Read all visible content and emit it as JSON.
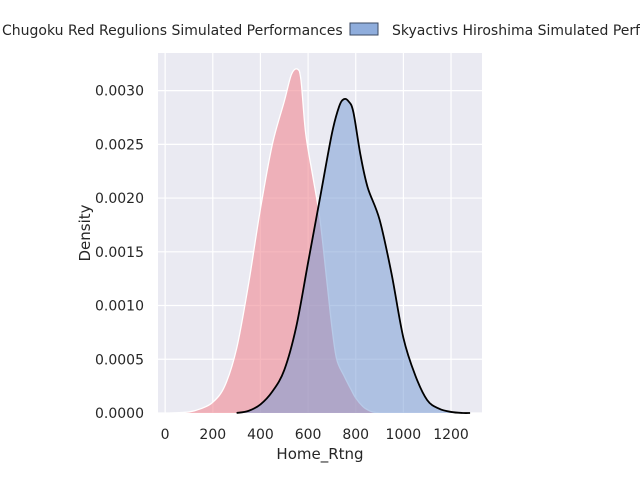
{
  "chart_data": {
    "type": "area",
    "xlabel": "Home_Rtng",
    "ylabel": "Density",
    "xlim": [
      -30,
      1330
    ],
    "ylim": [
      0,
      0.00335
    ],
    "x_ticks": [
      0,
      200,
      400,
      600,
      800,
      1000,
      1200
    ],
    "y_ticks": [
      0.0,
      0.0005,
      0.001,
      0.0015,
      0.002,
      0.0025,
      0.003
    ],
    "x_tick_labels": [
      "0",
      "200",
      "400",
      "600",
      "800",
      "1000",
      "1200"
    ],
    "y_tick_labels": [
      "0.0000",
      "0.0005",
      "0.0010",
      "0.0015",
      "0.0020",
      "0.0025",
      "0.0030"
    ],
    "grid": true,
    "legend_placement": "top",
    "series": [
      {
        "name": "Chugoku Red Regulions Simulated Performances",
        "color": "#f08c96",
        "edge": "#ffffff",
        "x": [
          20,
          100,
          150,
          200,
          250,
          300,
          350,
          400,
          450,
          500,
          530,
          555,
          570,
          590,
          620,
          650,
          680,
          700,
          720,
          750,
          780,
          800,
          830,
          850,
          870,
          890,
          900
        ],
        "y": [
          0.0,
          1e-05,
          4e-05,
          0.0001,
          0.00025,
          0.0006,
          0.0012,
          0.0019,
          0.0025,
          0.0029,
          0.00315,
          0.0032,
          0.0031,
          0.0026,
          0.0022,
          0.0018,
          0.0012,
          0.0008,
          0.0005,
          0.00035,
          0.00022,
          0.00014,
          6e-05,
          3e-05,
          1e-05,
          3e-06,
          0.0
        ]
      },
      {
        "name": "Skyactivs Hiroshima Simulated Performances",
        "color": "#7b9fd6",
        "edge": "#000000",
        "x": [
          300,
          350,
          400,
          450,
          500,
          550,
          600,
          650,
          700,
          730,
          750,
          770,
          790,
          820,
          850,
          900,
          950,
          1000,
          1050,
          1100,
          1150,
          1200,
          1250,
          1280
        ],
        "y": [
          0.0,
          2e-05,
          8e-05,
          0.0002,
          0.0004,
          0.0008,
          0.0014,
          0.002,
          0.0026,
          0.00285,
          0.00292,
          0.0029,
          0.0028,
          0.0024,
          0.0021,
          0.0018,
          0.0013,
          0.0007,
          0.00035,
          0.00012,
          4e-05,
          1e-05,
          0.0,
          0.0
        ]
      }
    ]
  }
}
